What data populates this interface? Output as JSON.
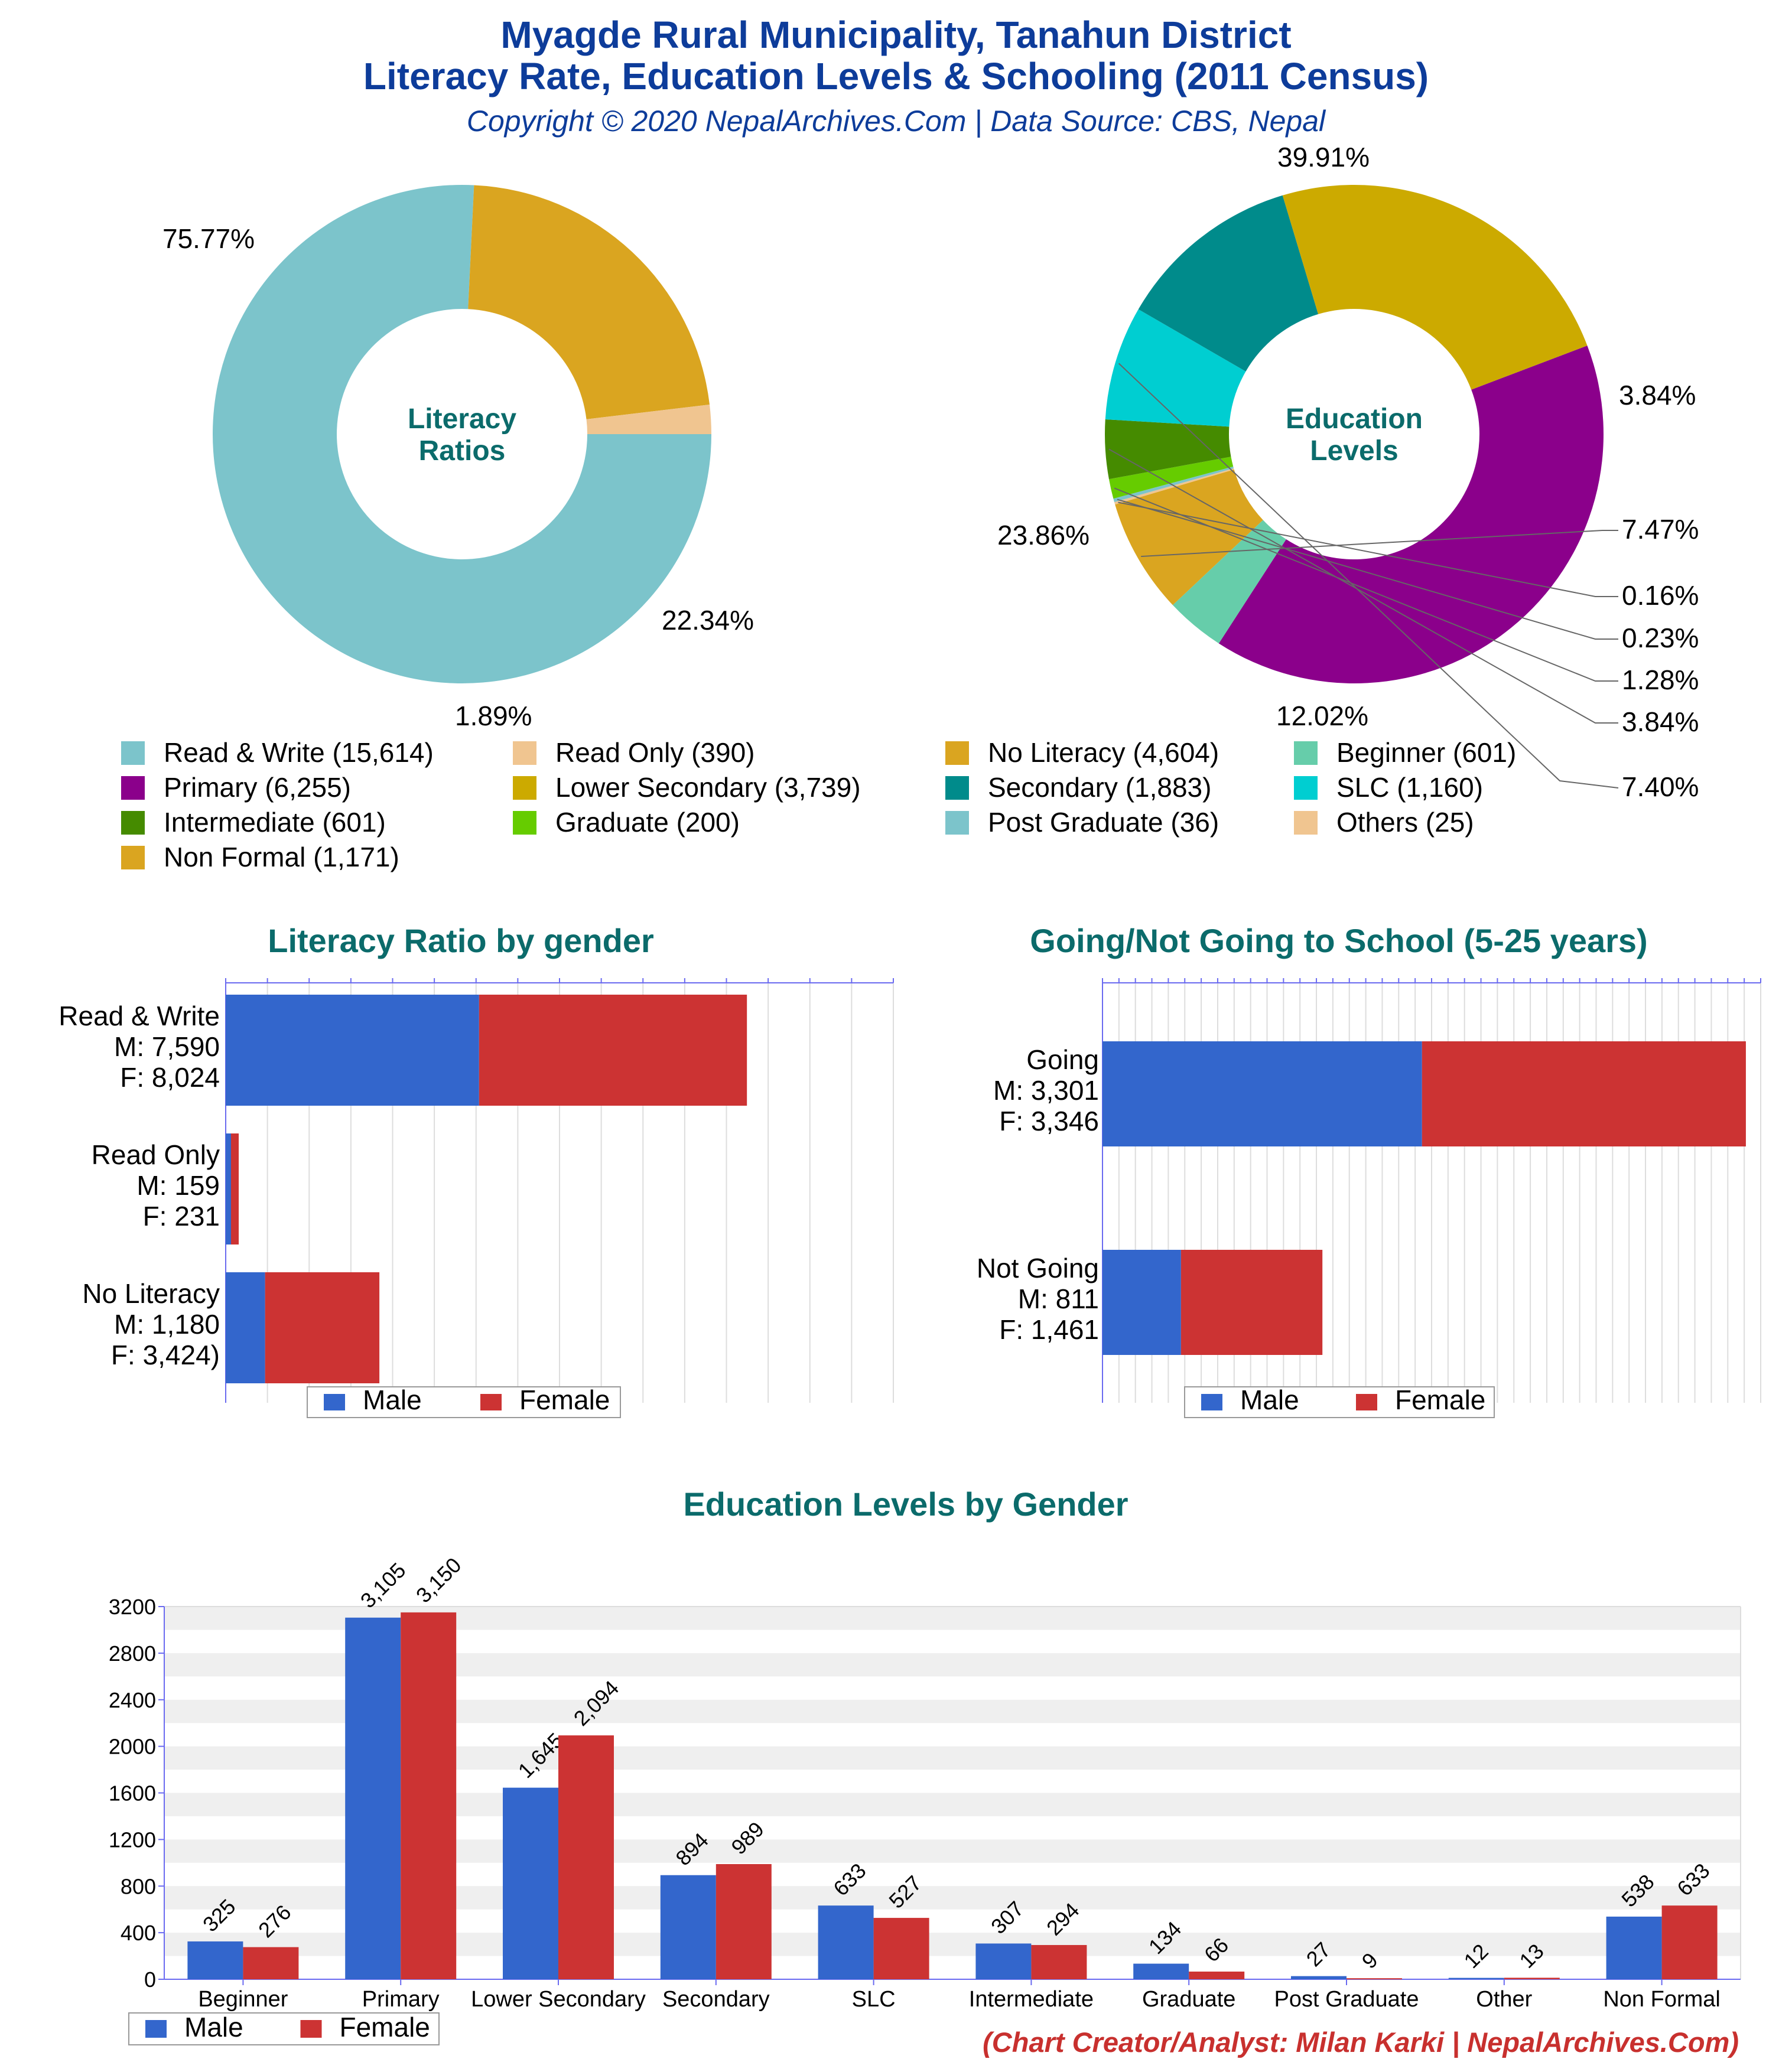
{
  "header": {
    "title_line1": "Myagde Rural Municipality, Tanahun District",
    "title_line2": "Literacy Rate, Education Levels & Schooling (2011 Census)",
    "subtitle": "Copyright © 2020 NepalArchives.Com | Data Source: CBS, Nepal"
  },
  "footer": {
    "credit": "(Chart Creator/Analyst: Milan Karki | NepalArchives.Com)"
  },
  "colors": {
    "title_blue": "#0d3c9a",
    "teal_title": "#0b6b6b",
    "male": "#3366cc",
    "female": "#cc3333",
    "credit_red": "#c8302e"
  },
  "chart_data": [
    {
      "id": "literacy-ratios",
      "type": "pie",
      "center_label_line1": "Literacy",
      "center_label_line2": "Ratios",
      "slices": [
        {
          "label": "Read & Write",
          "value": 15614,
          "percent_label": "75.77%",
          "color": "#7cc4cb"
        },
        {
          "label": "No Literacy",
          "value": 4604,
          "percent_label": "22.34%",
          "color": "#daa520"
        },
        {
          "label": "Read Only",
          "value": 390,
          "percent_label": "1.89%",
          "color": "#f0c590"
        }
      ]
    },
    {
      "id": "education-levels",
      "type": "pie",
      "center_label_line1": "Education",
      "center_label_line2": "Levels",
      "slices": [
        {
          "label": "Primary",
          "value": 6255,
          "percent_label": "39.91%",
          "color": "#8b008b"
        },
        {
          "label": "Beginner",
          "value": 601,
          "percent_label": "3.84%",
          "color": "#66cdaa"
        },
        {
          "label": "Non Formal",
          "value": 1171,
          "percent_label": "7.47%",
          "color": "#daa520"
        },
        {
          "label": "Others",
          "value": 25,
          "percent_label": "0.16%",
          "color": "#f0c590"
        },
        {
          "label": "Post Graduate",
          "value": 36,
          "percent_label": "0.23%",
          "color": "#7cc4cb"
        },
        {
          "label": "Graduate",
          "value": 200,
          "percent_label": "1.28%",
          "color": "#66cc00"
        },
        {
          "label": "Intermediate",
          "value": 601,
          "percent_label": "3.84%",
          "color": "#458b00"
        },
        {
          "label": "SLC",
          "value": 1160,
          "percent_label": "7.40%",
          "color": "#00ced1"
        },
        {
          "label": "Secondary",
          "value": 1883,
          "percent_label": "12.02%",
          "color": "#008b8b"
        },
        {
          "label": "Lower Secondary",
          "value": 3739,
          "percent_label": "23.86%",
          "color": "#ccaa00"
        }
      ]
    },
    {
      "id": "literacy-by-gender",
      "type": "bar",
      "orientation": "horizontal",
      "stacked": true,
      "title": "Literacy Ratio by gender",
      "categories": [
        {
          "name": "Read & Write",
          "m_label": "M: 7,590",
          "f_label": "F: 8,024"
        },
        {
          "name": "Read Only",
          "m_label": "M: 159",
          "f_label": "F: 231"
        },
        {
          "name": "No Literacy",
          "m_label": "M: 1,180",
          "f_label": "F: 3,424)"
        }
      ],
      "series": [
        {
          "name": "Male",
          "values": [
            7590,
            159,
            1180
          ],
          "color": "#3366cc"
        },
        {
          "name": "Female",
          "values": [
            8024,
            231,
            3424
          ],
          "color": "#cc3333"
        }
      ],
      "xlim": [
        0,
        20000
      ],
      "legend": "bottom"
    },
    {
      "id": "school-going",
      "type": "bar",
      "orientation": "horizontal",
      "stacked": true,
      "title": "Going/Not Going to School (5-25 years)",
      "categories": [
        {
          "name": "Going",
          "m_label": "M: 3,301",
          "f_label": "F: 3,346"
        },
        {
          "name": "Not Going",
          "m_label": "M: 811",
          "f_label": "F: 1,461"
        }
      ],
      "series": [
        {
          "name": "Male",
          "values": [
            3301,
            811
          ],
          "color": "#3366cc"
        },
        {
          "name": "Female",
          "values": [
            3346,
            1461
          ],
          "color": "#cc3333"
        }
      ],
      "xlim": [
        0,
        6800
      ],
      "legend": "bottom"
    },
    {
      "id": "education-by-gender",
      "type": "bar",
      "orientation": "vertical",
      "title": "Education Levels by Gender",
      "categories": [
        "Beginner",
        "Primary",
        "Lower Secondary",
        "Secondary",
        "SLC",
        "Intermediate",
        "Graduate",
        "Post Graduate",
        "Other",
        "Non Formal"
      ],
      "series": [
        {
          "name": "Male",
          "values": [
            325,
            3105,
            1645,
            894,
            633,
            307,
            134,
            27,
            12,
            538
          ],
          "labels": [
            "325",
            "3,105",
            "1,645",
            "894",
            "633",
            "307",
            "134",
            "27",
            "12",
            "538"
          ],
          "color": "#3366cc"
        },
        {
          "name": "Female",
          "values": [
            276,
            3150,
            2094,
            989,
            527,
            294,
            66,
            9,
            13,
            633
          ],
          "labels": [
            "276",
            "3,150",
            "2,094",
            "989",
            "527",
            "294",
            "66",
            "9",
            "13",
            "633"
          ],
          "color": "#cc3333"
        }
      ],
      "yticks": [
        "0",
        "400",
        "800",
        "1200",
        "1600",
        "2000",
        "2400",
        "2800",
        "3200"
      ],
      "ylim": [
        0,
        3200
      ],
      "legend": "bottom-left"
    }
  ],
  "legend_main": [
    {
      "label": "Read & Write (15,614)",
      "color": "#7cc4cb"
    },
    {
      "label": "Read Only (390)",
      "color": "#f0c590"
    },
    {
      "label": "No Literacy (4,604)",
      "color": "#daa520"
    },
    {
      "label": "Beginner (601)",
      "color": "#66cdaa"
    },
    {
      "label": "Primary (6,255)",
      "color": "#8b008b"
    },
    {
      "label": "Lower Secondary (3,739)",
      "color": "#ccaa00"
    },
    {
      "label": "Secondary (1,883)",
      "color": "#008b8b"
    },
    {
      "label": "SLC (1,160)",
      "color": "#00ced1"
    },
    {
      "label": "Intermediate (601)",
      "color": "#458b00"
    },
    {
      "label": "Graduate (200)",
      "color": "#66cc00"
    },
    {
      "label": "Post Graduate (36)",
      "color": "#7cc4cb"
    },
    {
      "label": "Others (25)",
      "color": "#f0c590"
    },
    {
      "label": "Non Formal (1,171)",
      "color": "#daa520"
    }
  ]
}
